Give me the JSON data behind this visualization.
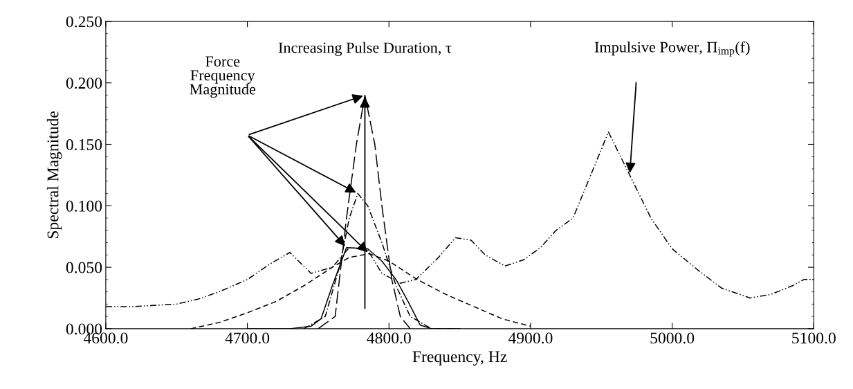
{
  "chart_data": {
    "type": "line",
    "xlabel": "Frequency, Hz",
    "ylabel": "Spectral Magnitude",
    "xlim": [
      4600.0,
      5100.0
    ],
    "xticks": [
      {
        "value": 4600,
        "label": "4600.0"
      },
      {
        "value": 4700,
        "label": "4700.0"
      },
      {
        "value": 4800,
        "label": "4800.0"
      },
      {
        "value": 4900,
        "label": "4900.0"
      },
      {
        "value": 5000,
        "label": "5000.0"
      },
      {
        "value": 5100,
        "label": "5100.0"
      }
    ],
    "ylim": [
      0.0,
      0.25
    ],
    "yticks": [
      {
        "value": 0,
        "label": "0.000"
      },
      {
        "value": 0.05,
        "label": "0.050"
      },
      {
        "value": 0.1,
        "label": "0.100"
      },
      {
        "value": 0.15,
        "label": "0.150"
      },
      {
        "value": 0.2,
        "label": "0.200"
      },
      {
        "value": 0.25,
        "label": "0.250"
      }
    ],
    "grid": false,
    "legend": false,
    "marker": "none",
    "series": [
      {
        "color": "#000000",
        "line_style": "dashdotdot",
        "x": [
          4600,
          4620,
          4650,
          4665,
          4680,
          4700,
          4715,
          4730,
          4745,
          4760,
          4772,
          4785,
          4795,
          4808,
          4819,
          4835,
          4847,
          4858,
          4868,
          4882,
          4895,
          4907,
          4918,
          4930,
          4955,
          4970,
          4985,
          5000,
          5020,
          5035,
          5055,
          5070,
          5085,
          5093,
          5100
        ],
        "values": [
          0.018,
          0.018,
          0.02,
          0.024,
          0.03,
          0.04,
          0.052,
          0.062,
          0.045,
          0.05,
          0.066,
          0.064,
          0.045,
          0.037,
          0.04,
          0.058,
          0.074,
          0.072,
          0.06,
          0.051,
          0.056,
          0.066,
          0.08,
          0.09,
          0.16,
          0.125,
          0.09,
          0.065,
          0.046,
          0.033,
          0.025,
          0.028,
          0.035,
          0.04,
          0.04
        ]
      },
      {
        "color": "#000000",
        "line_style": "dashed",
        "x": [
          4660,
          4680,
          4700,
          4720,
          4740,
          4760,
          4772,
          4786,
          4800,
          4820,
          4840,
          4860,
          4880,
          4900
        ],
        "values": [
          0.0,
          0.005,
          0.013,
          0.022,
          0.035,
          0.05,
          0.058,
          0.061,
          0.055,
          0.04,
          0.028,
          0.018,
          0.008,
          0.002
        ]
      },
      {
        "color": "#000000",
        "line_style": "solid",
        "x": [
          4700,
          4730,
          4745,
          4752,
          4760,
          4770,
          4785,
          4795,
          4805,
          4814,
          4822,
          4830,
          4850
        ],
        "values": [
          0.0,
          0.0,
          0.002,
          0.008,
          0.035,
          0.066,
          0.065,
          0.055,
          0.04,
          0.021,
          0.003,
          0.0,
          0.0
        ]
      },
      {
        "color": "#000000",
        "line_style": "dashdot",
        "x": [
          4740,
          4755,
          4765,
          4772,
          4778,
          4785,
          4795,
          4805,
          4815,
          4830,
          4850
        ],
        "values": [
          0.0,
          0.01,
          0.05,
          0.09,
          0.11,
          0.1,
          0.07,
          0.035,
          0.01,
          0.0,
          0.0
        ]
      },
      {
        "color": "#000000",
        "line_style": "longdash",
        "x": [
          4750,
          4762,
          4770,
          4777,
          4783,
          4790,
          4795,
          4802,
          4808,
          4815
        ],
        "values": [
          0.0,
          0.01,
          0.09,
          0.15,
          0.19,
          0.15,
          0.1,
          0.04,
          0.01,
          0.0
        ]
      }
    ],
    "annotations": [
      "Force\nFrequency\nMagnitude",
      "Increasing Pulse Duration, τ",
      "Impulsive Power, Π$_{imp}$(f)"
    ]
  }
}
